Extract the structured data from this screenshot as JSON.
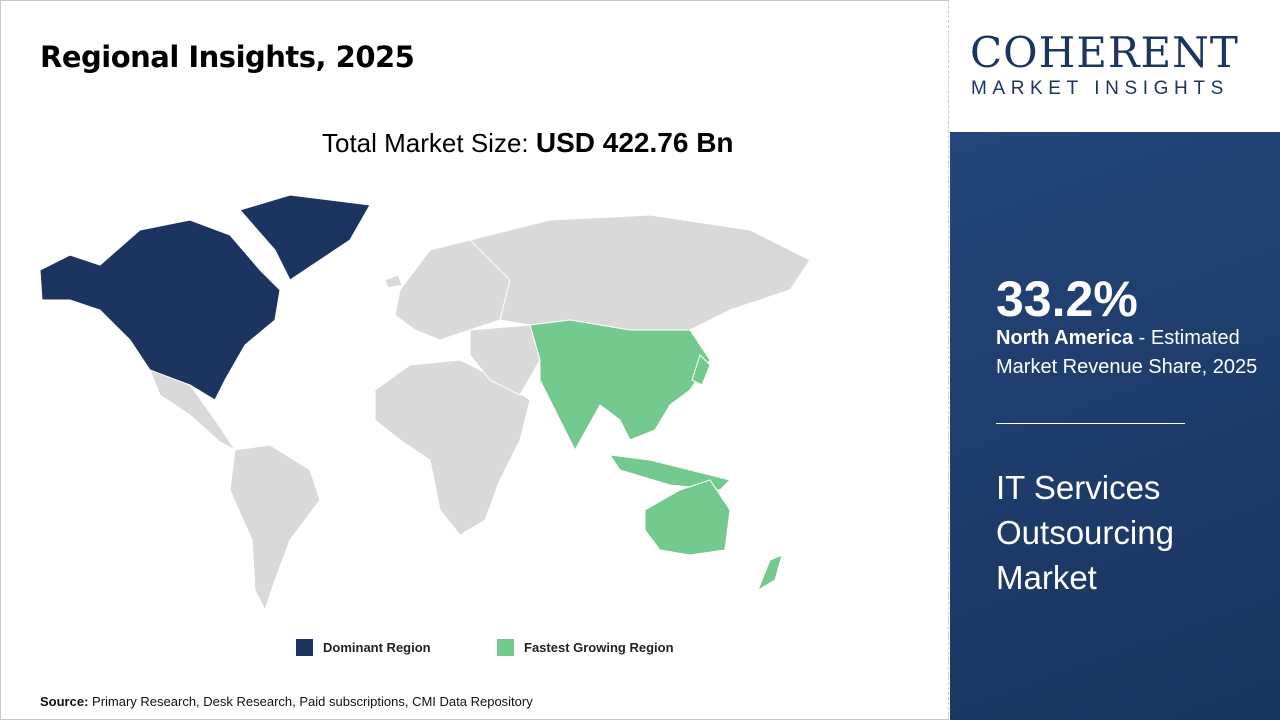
{
  "title": "Regional Insights, 2025",
  "total_market": {
    "label": "Total Market Size:",
    "value": "USD 422.76 Bn"
  },
  "legend": [
    {
      "label": "Dominant Region",
      "color": "#1b3560"
    },
    {
      "label": "Fastest Growing Region",
      "color": "#74c98f"
    }
  ],
  "map": {
    "dominant_region": "North America",
    "fastest_growing_region": "Asia Pacific",
    "other_color": "#d9d9d9"
  },
  "source": {
    "label": "Source:",
    "text": " Primary Research, Desk Research, Paid subscriptions, CMI Data Repository"
  },
  "logo": {
    "main": "COHERENT",
    "sub": "MARKET INSIGHTS"
  },
  "panel": {
    "share": "33.2%",
    "region": "North America",
    "desc": " - Estimated Market Revenue Share, 2025",
    "market": "IT Services Outsourcing Market"
  }
}
